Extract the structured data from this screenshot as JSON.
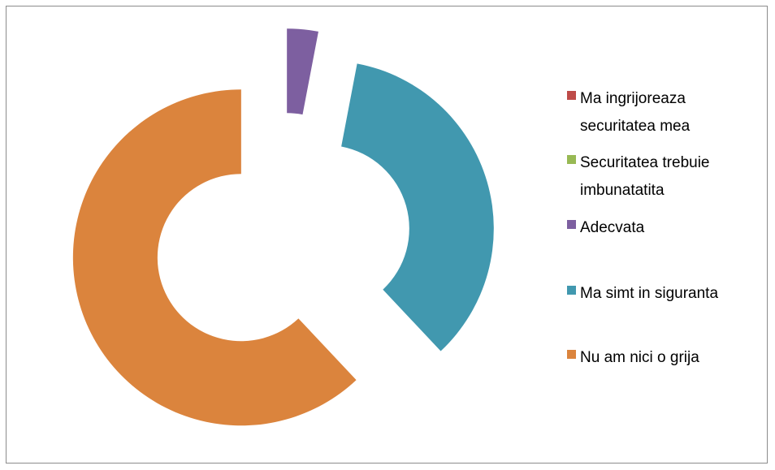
{
  "chart_data": {
    "type": "doughnut",
    "categories": [
      "Ma ingrijoreaza securitatea mea",
      "Securitatea trebuie imbunatatita",
      "Adecvata",
      "Ma simt in siguranta",
      "Nu am nici o grija"
    ],
    "values": [
      0,
      0,
      3,
      35,
      62
    ],
    "colors": [
      "#be4b48",
      "#98b954",
      "#7d5fa0",
      "#4198af",
      "#db843d"
    ],
    "legend": "right"
  }
}
